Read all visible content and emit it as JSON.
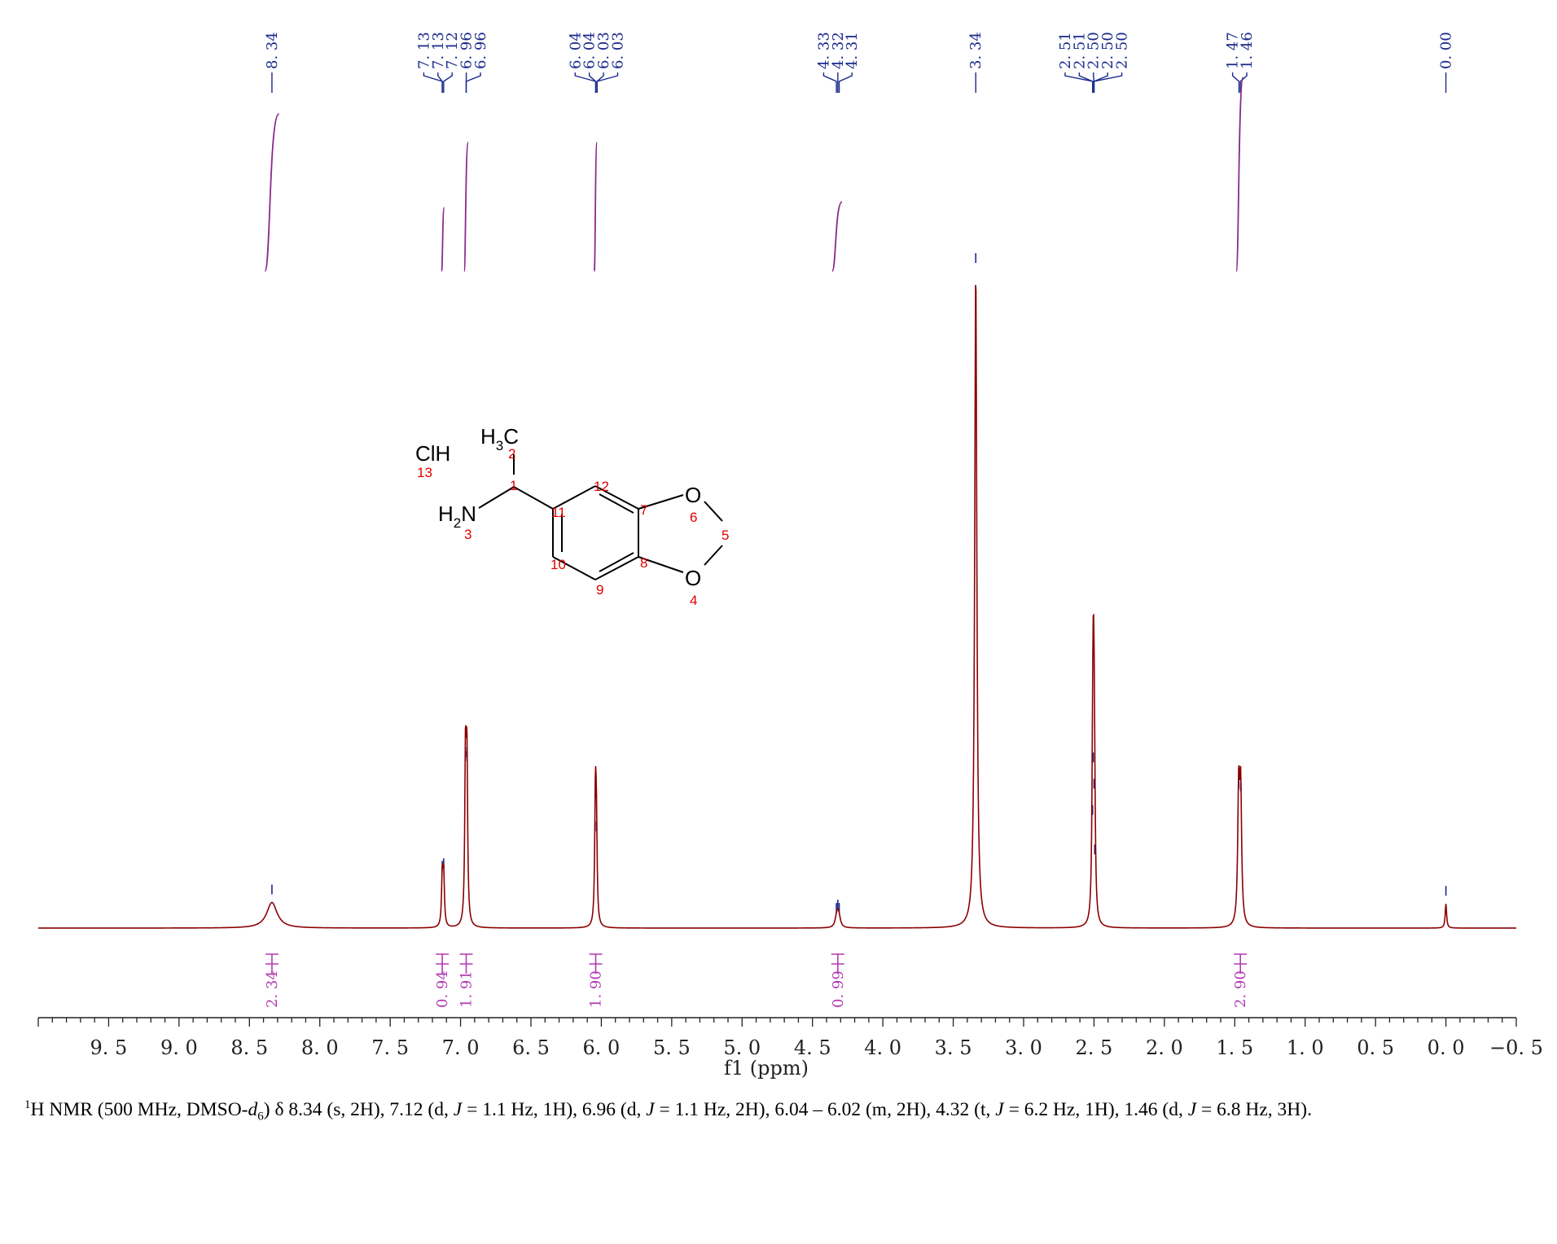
{
  "chart_data": {
    "type": "line",
    "xlabel": "f1 (ppm)",
    "xlim": [
      10.0,
      -0.5
    ],
    "x_axis_reversed": true,
    "x_ticks": [
      "9.5",
      "9.0",
      "8.5",
      "8.0",
      "7.5",
      "7.0",
      "6.5",
      "6.0",
      "5.5",
      "5.0",
      "4.5",
      "4.0",
      "3.5",
      "3.0",
      "2.5",
      "2.0",
      "1.5",
      "1.0",
      "0.5",
      "0.0",
      "-0.5"
    ],
    "x_tick_values": [
      9.5,
      9.0,
      8.5,
      8.0,
      7.5,
      7.0,
      6.5,
      6.0,
      5.5,
      5.0,
      4.5,
      4.0,
      3.5,
      3.0,
      2.5,
      2.0,
      1.5,
      1.0,
      0.5,
      0.0,
      -0.5
    ],
    "y_relative_scale": [
      0,
      100
    ],
    "grid": false,
    "line_color": "#8b0000",
    "peaks": [
      {
        "ppm": 8.34,
        "height": 3.9,
        "width": 0.045
      },
      {
        "ppm": 7.13,
        "height": 7.5,
        "width": 0.006
      },
      {
        "ppm": 7.12,
        "height": 7.9,
        "width": 0.006
      },
      {
        "ppm": 6.965,
        "height": 24.8,
        "width": 0.006
      },
      {
        "ppm": 6.955,
        "height": 24.2,
        "width": 0.006
      },
      {
        "ppm": 6.042,
        "height": 18.5,
        "width": 0.006
      },
      {
        "ppm": 6.035,
        "height": 13.5,
        "width": 0.006
      },
      {
        "ppm": 4.33,
        "height": 1.1,
        "width": 0.012
      },
      {
        "ppm": 4.32,
        "height": 1.6,
        "width": 0.012
      },
      {
        "ppm": 4.31,
        "height": 1.1,
        "width": 0.012
      },
      {
        "ppm": 3.34,
        "height": 100,
        "width": 0.009
      },
      {
        "ppm": 2.51,
        "height": 16.0,
        "width": 0.006
      },
      {
        "ppm": 2.505,
        "height": 24.0,
        "width": 0.006
      },
      {
        "ppm": 2.5,
        "height": 20.0,
        "width": 0.006
      },
      {
        "ppm": 2.495,
        "height": 10.0,
        "width": 0.006
      },
      {
        "ppm": 1.472,
        "height": 20.0,
        "width": 0.008
      },
      {
        "ppm": 1.458,
        "height": 19.6,
        "width": 0.008
      },
      {
        "ppm": 0.0,
        "height": 3.7,
        "width": 0.006
      }
    ],
    "peak_labels": [
      {
        "text": "8.34",
        "ppm": 8.34
      },
      {
        "text": "7.13",
        "ppm": 7.13
      },
      {
        "text": "7.13",
        "ppm": 7.13
      },
      {
        "text": "7.12",
        "ppm": 7.12
      },
      {
        "text": "6.96",
        "ppm": 6.96
      },
      {
        "text": "6.96",
        "ppm": 6.96
      },
      {
        "text": "6.04",
        "ppm": 6.04
      },
      {
        "text": "6.04",
        "ppm": 6.04
      },
      {
        "text": "6.03",
        "ppm": 6.03
      },
      {
        "text": "6.03",
        "ppm": 6.03
      },
      {
        "text": "4.33",
        "ppm": 4.33
      },
      {
        "text": "4.32",
        "ppm": 4.32
      },
      {
        "text": "4.31",
        "ppm": 4.31
      },
      {
        "text": "3.34",
        "ppm": 3.34
      },
      {
        "text": "2.51",
        "ppm": 2.51
      },
      {
        "text": "2.51",
        "ppm": 2.51
      },
      {
        "text": "2.50",
        "ppm": 2.5
      },
      {
        "text": "2.50",
        "ppm": 2.5
      },
      {
        "text": "2.50",
        "ppm": 2.5
      },
      {
        "text": "1.47",
        "ppm": 1.47
      },
      {
        "text": "1.46",
        "ppm": 1.46
      },
      {
        "text": "0.00",
        "ppm": 0.0
      }
    ],
    "integrals": [
      {
        "value": "2.34",
        "ppm": 8.34,
        "from": 8.39,
        "to": 8.29
      },
      {
        "value": "0.94",
        "ppm": 7.13,
        "from": 7.135,
        "to": 7.115
      },
      {
        "value": "1.91",
        "ppm": 6.96,
        "from": 6.975,
        "to": 6.945
      },
      {
        "value": "1.90",
        "ppm": 6.04,
        "from": 6.05,
        "to": 6.03
      },
      {
        "value": "0.99",
        "ppm": 4.32,
        "from": 4.36,
        "to": 4.29
      },
      {
        "value": "2.90",
        "ppm": 1.46,
        "from": 1.49,
        "to": 1.44
      }
    ]
  },
  "structure": {
    "h3c": "H3C",
    "clh": "ClH",
    "h2n": "H2N",
    "o_top": "O",
    "o_bottom": "O",
    "atom_numbers": [
      "1",
      "2",
      "3",
      "4",
      "5",
      "6",
      "7",
      "8",
      "9",
      "10",
      "11",
      "12",
      "13"
    ]
  },
  "caption": {
    "sup": "1",
    "prefix": "H NMR (500 MHz, DMSO-",
    "d": "d",
    "sub": "6",
    "rest_1": ") δ 8.34 (s, 2H), 7.12 (d, ",
    "j1": "J",
    "rest_2": " = 1.1 Hz, 1H), 6.96 (d, ",
    "j2": "J",
    "rest_3": " = 1.1 Hz, 2H), 6.04 – 6.02 (m, 2H), 4.32 (t, ",
    "j3": "J",
    "rest_4": " = 6.2 Hz, 1H), 1.46 (d, ",
    "j4": "J",
    "rest_5": " = 6.8 Hz, 3H)."
  }
}
